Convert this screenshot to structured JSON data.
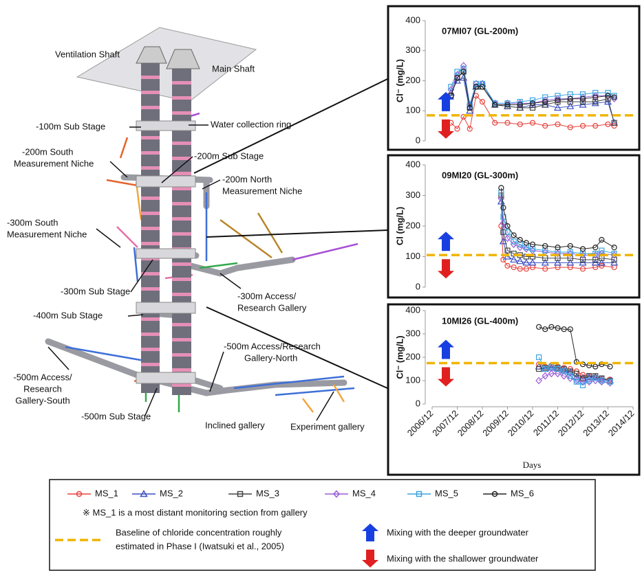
{
  "diagram": {
    "labels": [
      [
        "Ventilation Shaft"
      ],
      [
        "Main Shaft"
      ],
      [
        "-100m Sub Stage"
      ],
      [
        "Water collection ring"
      ],
      [
        "-200m South",
        "Measurement Niche"
      ],
      [
        "-200m Sub Stage"
      ],
      [
        "-200m North",
        "Measurement Niche"
      ],
      [
        "-300m South",
        "Measurement Niche"
      ],
      [
        "-300m Sub Stage"
      ],
      [
        "-300m Access/",
        "Research Gallery"
      ],
      [
        "-400m Sub Stage"
      ],
      [
        "-500m Access/Research",
        "Gallery-North"
      ],
      [
        "-500m Access/",
        "Research",
        "Gallery-South"
      ],
      [
        "-500m Sub Stage"
      ],
      [
        "Inclined gallery"
      ],
      [
        "Experiment gallery"
      ]
    ]
  },
  "legend": {
    "series": [
      {
        "name": "MS_1",
        "color": "#e8413c",
        "marker": "circle"
      },
      {
        "name": "MS_2",
        "color": "#3a4fc4",
        "marker": "triangle"
      },
      {
        "name": "MS_3",
        "color": "#444444",
        "marker": "square"
      },
      {
        "name": "MS_4",
        "color": "#9b5bd6",
        "marker": "diamond"
      },
      {
        "name": "MS_5",
        "color": "#3aa3e0",
        "marker": "square"
      },
      {
        "name": "MS_6",
        "color": "#222222",
        "marker": "circle"
      }
    ],
    "note": "※ MS_1 is a most distant monitoring section from gallery",
    "baseline_text": [
      "Baseline of chloride concentration roughly",
      "estimated in Phase I (Iwatsuki et al., 2005)"
    ],
    "baseline_color": "#f0b400",
    "deeper": "Mixing with the deeper groundwater",
    "shallower": "Mixing with the shallower groundwater"
  },
  "chart_data": [
    {
      "type": "line",
      "title": "07MI07 (GL-200m)",
      "y_label": "Cl⁻ (mg/L)",
      "xlim": [
        "2006/12",
        "2014/12"
      ],
      "ylim": [
        0,
        400
      ],
      "yticks": [
        0,
        100,
        200,
        300,
        400
      ],
      "baseline": 85,
      "x": [
        "2007/09",
        "2007/12",
        "2008/03",
        "2008/06",
        "2008/09",
        "2008/12",
        "2009/06",
        "2009/12",
        "2010/06",
        "2010/12",
        "2011/06",
        "2011/12",
        "2012/06",
        "2012/12",
        "2013/06",
        "2013/12",
        "2014/03"
      ],
      "series": [
        {
          "values": [
            60,
            40,
            80,
            40,
            150,
            130,
            60,
            60,
            55,
            60,
            50,
            55,
            45,
            50,
            50,
            55,
            50
          ]
        },
        {
          "values": [
            160,
            200,
            210,
            100,
            180,
            190,
            120,
            115,
            110,
            120,
            120,
            110,
            115,
            120,
            125,
            130,
            60
          ]
        },
        {
          "values": [
            150,
            210,
            230,
            110,
            180,
            180,
            120,
            115,
            110,
            110,
            120,
            130,
            130,
            130,
            130,
            140,
            60
          ]
        },
        {
          "values": [
            170,
            220,
            250,
            120,
            190,
            190,
            125,
            125,
            125,
            125,
            135,
            140,
            140,
            145,
            150,
            150,
            140
          ]
        },
        {
          "values": [
            180,
            230,
            240,
            120,
            190,
            190,
            125,
            125,
            130,
            135,
            145,
            150,
            155,
            155,
            160,
            160,
            150
          ]
        },
        {
          "values": [
            150,
            210,
            230,
            110,
            180,
            180,
            120,
            120,
            120,
            125,
            130,
            135,
            140,
            140,
            145,
            150,
            145
          ]
        }
      ]
    },
    {
      "type": "line",
      "title": "09MI20 (GL-300m)",
      "y_label": "Cl (mg/L)",
      "xlim": [
        "2006/12",
        "2014/12"
      ],
      "ylim": [
        0,
        400
      ],
      "yticks": [
        0,
        100,
        200,
        300,
        400
      ],
      "baseline": 105,
      "x": [
        "2009/09",
        "2009/10",
        "2009/12",
        "2010/03",
        "2010/06",
        "2010/09",
        "2010/12",
        "2011/06",
        "2011/12",
        "2012/06",
        "2012/12",
        "2013/06",
        "2013/09",
        "2014/03"
      ],
      "series": [
        {
          "values": [
            200,
            90,
            70,
            65,
            60,
            60,
            65,
            60,
            65,
            65,
            60,
            65,
            70,
            65
          ]
        },
        {
          "values": [
            280,
            150,
            100,
            90,
            85,
            80,
            80,
            80,
            80,
            80,
            80,
            80,
            80,
            80
          ]
        },
        {
          "values": [
            300,
            180,
            120,
            110,
            105,
            100,
            100,
            95,
            95,
            95,
            90,
            90,
            95,
            90
          ]
        },
        {
          "values": [
            290,
            210,
            160,
            140,
            130,
            125,
            120,
            115,
            110,
            110,
            105,
            105,
            110,
            105
          ]
        },
        {
          "values": [
            310,
            230,
            180,
            150,
            140,
            130,
            125,
            120,
            115,
            115,
            110,
            110,
            120,
            110
          ]
        },
        {
          "values": [
            325,
            260,
            200,
            170,
            155,
            145,
            140,
            135,
            130,
            135,
            125,
            130,
            155,
            130
          ]
        }
      ]
    },
    {
      "type": "line",
      "title": "10MI26 (GL-400m)",
      "y_label": "Cl⁻ (mg/L)",
      "x_label": "Days",
      "xlim": [
        "2006/12",
        "2014/12"
      ],
      "xticks": [
        "2006/12",
        "2007/12",
        "2008/12",
        "2009/12",
        "2010/12",
        "2011/12",
        "2012/12",
        "2013/12",
        "2014/12"
      ],
      "ylim": [
        0,
        400
      ],
      "yticks": [
        0,
        100,
        200,
        300,
        400
      ],
      "baseline": 175,
      "x": [
        "2011/03",
        "2011/06",
        "2011/09",
        "2011/12",
        "2012/03",
        "2012/06",
        "2012/09",
        "2012/12",
        "2013/03",
        "2013/06",
        "2013/09",
        "2014/01"
      ],
      "series": [
        {
          "values": [
            170,
            160,
            165,
            160,
            155,
            150,
            140,
            125,
            120,
            115,
            110,
            105
          ]
        },
        {
          "values": [
            160,
            150,
            155,
            150,
            145,
            135,
            115,
            110,
            115,
            115,
            105,
            100
          ]
        },
        {
          "values": [
            150,
            155,
            160,
            155,
            150,
            140,
            130,
            110,
            120,
            120,
            110,
            100
          ]
        },
        {
          "values": [
            100,
            120,
            130,
            130,
            120,
            110,
            100,
            95,
            95,
            100,
            95,
            90
          ]
        },
        {
          "values": [
            200,
            150,
            160,
            150,
            140,
            120,
            95,
            80,
            100,
            110,
            100,
            95
          ]
        },
        {
          "values": [
            330,
            320,
            330,
            325,
            320,
            320,
            180,
            170,
            165,
            160,
            170,
            160
          ]
        }
      ]
    }
  ]
}
